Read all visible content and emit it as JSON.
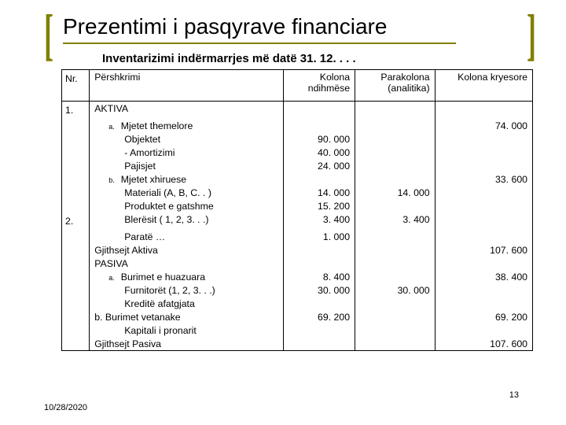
{
  "title": "Prezentimi i pasqyrave financiare",
  "subtitle": "Inventarizimi indërmarrjes më datë 31. 12. . . .",
  "headers": {
    "nr": "Nr.",
    "desc": "Përshkrimi",
    "col1": "Kolona ndihmëse",
    "col2": "Parakolona (analitika)",
    "col3": "Kolona kryesore"
  },
  "rows": [
    {
      "nr": "1.",
      "desc": "AKTIVA",
      "c1": "",
      "c2": "",
      "c3": "",
      "cls": ""
    },
    {
      "nr": "",
      "desc": "Mjetet themelore",
      "c1": "",
      "c2": "",
      "c3": "74. 000",
      "cls": "ind1",
      "lbl": "a."
    },
    {
      "nr": "",
      "desc": "Objektet",
      "c1": "90. 000",
      "c2": "",
      "c3": "",
      "cls": "ind2"
    },
    {
      "nr": "",
      "desc": "- Amortizimi",
      "c1": "40. 000",
      "c2": "",
      "c3": "",
      "cls": "ind2"
    },
    {
      "nr": "",
      "desc": "Pajisjet",
      "c1": "24. 000",
      "c2": "",
      "c3": "",
      "cls": "ind2"
    },
    {
      "nr": "",
      "desc": "Mjetet xhiruese",
      "c1": "",
      "c2": "",
      "c3": "33. 600",
      "cls": "ind1",
      "lbl": "b."
    },
    {
      "nr": "",
      "desc": "Materiali (A, B, C. . )",
      "c1": "14. 000",
      "c2": "14. 000",
      "c3": "",
      "cls": "ind2"
    },
    {
      "nr": "",
      "desc": "Produktet e gatshme",
      "c1": "15. 200",
      "c2": "",
      "c3": "",
      "cls": "ind2"
    },
    {
      "nr": "2.",
      "desc": "Blerësit ( 1, 2, 3. . .)",
      "c1": "3. 400",
      "c2": "3. 400",
      "c3": "",
      "cls": "ind2"
    },
    {
      "nr": "",
      "desc": "Paratë …",
      "c1": "1. 000",
      "c2": "",
      "c3": "",
      "cls": "ind2"
    },
    {
      "nr": "",
      "desc": "Gjithsejt Aktiva",
      "c1": "",
      "c2": "",
      "c3": "107. 600",
      "cls": ""
    },
    {
      "nr": "",
      "desc": "PASIVA",
      "c1": "",
      "c2": "",
      "c3": "",
      "cls": ""
    },
    {
      "nr": "",
      "desc": "Burimet e huazuara",
      "c1": "8. 400",
      "c2": "",
      "c3": "38. 400",
      "cls": "ind1",
      "lbl": "a."
    },
    {
      "nr": "",
      "desc": "Furnitorët (1, 2, 3. . .)",
      "c1": "30. 000",
      "c2": "30. 000",
      "c3": "",
      "cls": "ind2"
    },
    {
      "nr": "",
      "desc": "Kreditë afatgjata",
      "c1": "",
      "c2": "",
      "c3": "",
      "cls": "ind2"
    },
    {
      "nr": "",
      "desc": "b. Burimet vetanake",
      "c1": "69. 200",
      "c2": "",
      "c3": "69. 200",
      "cls": ""
    },
    {
      "nr": "",
      "desc": "Kapitali i pronarit",
      "c1": "",
      "c2": "",
      "c3": "",
      "cls": "ind2"
    },
    {
      "nr": "",
      "desc": "Gjithsejt Pasiva",
      "c1": "",
      "c2": "",
      "c3": "107. 600",
      "cls": "",
      "last": true
    }
  ],
  "footer": {
    "date": "10/28/2020",
    "page": "13"
  },
  "colors": {
    "accent": "#808000"
  }
}
